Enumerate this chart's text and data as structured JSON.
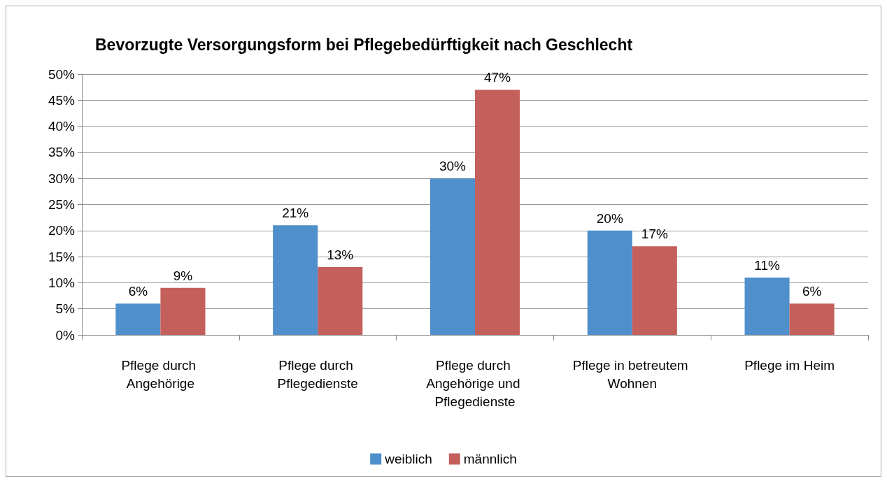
{
  "chart_data": {
    "type": "bar",
    "title": "Bevorzugte Versorgungsform bei Pflegebedürftigkeit nach Geschlecht",
    "categories": [
      "Pflege durch Angehörige",
      "Pflege durch Pflegedienste",
      "Pflege durch Angehörige und Pflegedienste",
      "Pflege in betreutem Wohnen",
      "Pflege im Heim"
    ],
    "series": [
      {
        "name": "weiblich",
        "color": "#4f8fcb",
        "values": [
          6,
          21,
          30,
          20,
          11
        ],
        "value_labels": [
          "6%",
          "21%",
          "30%",
          "20%",
          "11%"
        ]
      },
      {
        "name": "männlich",
        "color": "#c4605b",
        "values": [
          9,
          13,
          47,
          17,
          6
        ],
        "value_labels": [
          "9%",
          "13%",
          "47%",
          "17%",
          "6%"
        ]
      }
    ],
    "ylim": [
      0,
      50
    ],
    "yticks": [
      {
        "value": 0,
        "label": "0%"
      },
      {
        "value": 5,
        "label": "5%"
      },
      {
        "value": 10,
        "label": "10%"
      },
      {
        "value": 15,
        "label": "15%"
      },
      {
        "value": 20,
        "label": "20%"
      },
      {
        "value": 25,
        "label": "25%"
      },
      {
        "value": 30,
        "label": "30%"
      },
      {
        "value": 35,
        "label": "35%"
      },
      {
        "value": 40,
        "label": "40%"
      },
      {
        "value": 45,
        "label": "45%"
      },
      {
        "value": 50,
        "label": "50%"
      }
    ],
    "grid": "y",
    "legend": "bottom"
  }
}
